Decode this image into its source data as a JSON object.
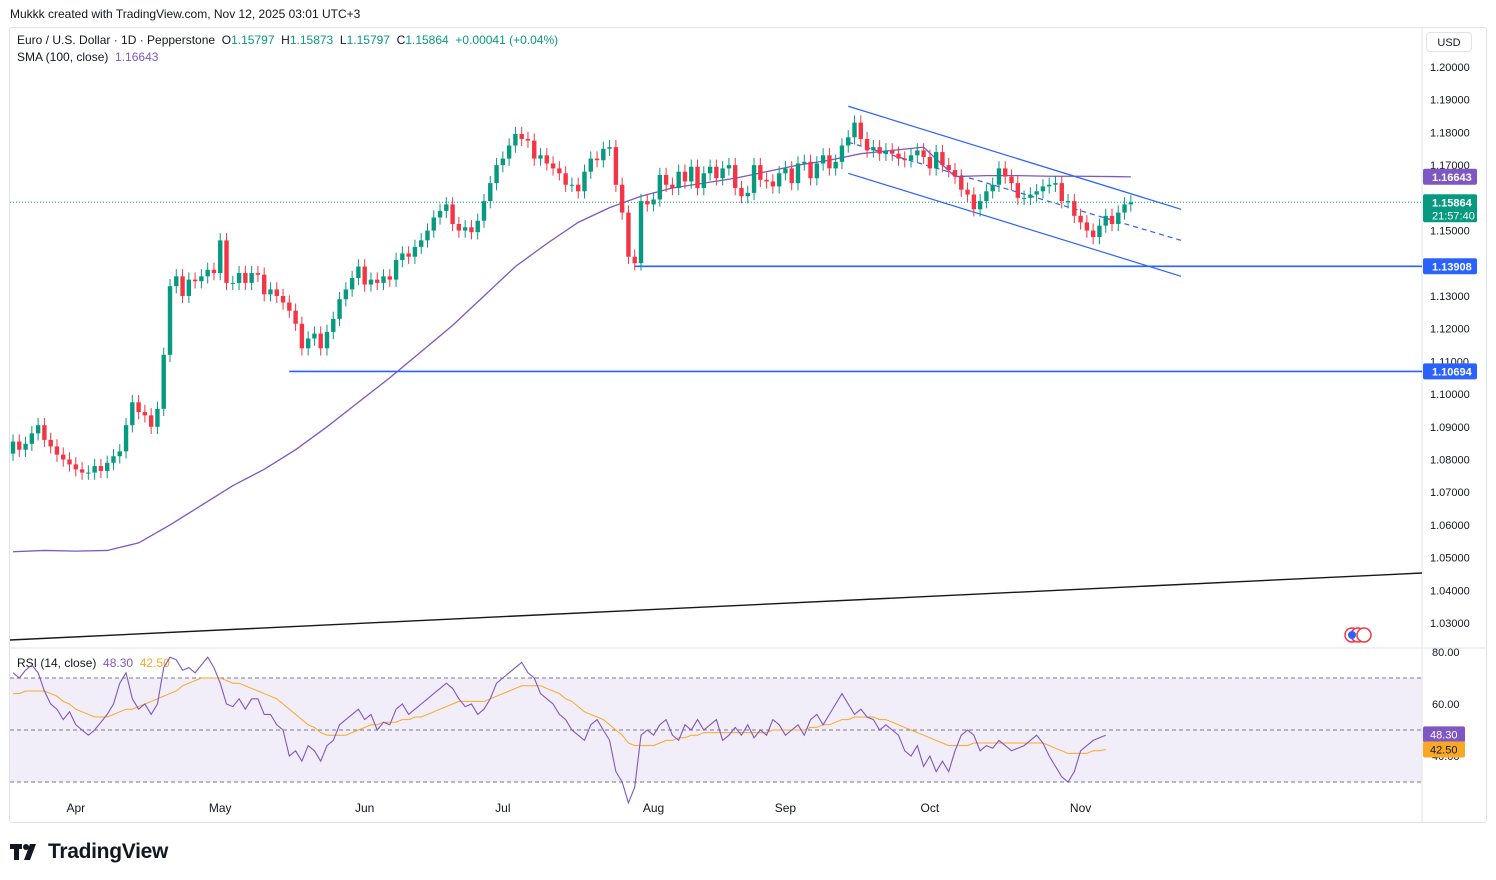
{
  "header": {
    "created_by": "Mukkk created with TradingView.com, Nov 12, 2025 03:01 UTC+3"
  },
  "symbol": {
    "name": "Euro / U.S. Dollar · 1D · Pepperstone",
    "open_label": "O",
    "open": "1.15797",
    "high_label": "H",
    "high": "1.15873",
    "low_label": "L",
    "low": "1.15797",
    "close_label": "C",
    "close": "1.15864",
    "change": "+0.00041 (+0.04%)"
  },
  "sma": {
    "label": "SMA (100, close)",
    "value": "1.16643"
  },
  "rsi": {
    "label": "RSI (14, close)",
    "value": "48.30",
    "ma_value": "42.50"
  },
  "currency_button": "USD",
  "brand": "TradingView",
  "colors": {
    "up": "#089981",
    "down": "#f23645",
    "sma": "#7e57c2",
    "rsi": "#7e57c2",
    "rsi_ma": "#f9a825",
    "hline": "#2962ff",
    "channel": "#2962ff"
  },
  "chart_data": [
    {
      "type": "candlestick",
      "title": "Euro / U.S. Dollar · 1D · Pepperstone",
      "ylim": [
        1.022,
        1.206
      ],
      "y_ticks": [
        "1.20000",
        "1.19000",
        "1.18000",
        "1.17000",
        "1.16000",
        "1.15000",
        "1.14000",
        "1.13000",
        "1.12000",
        "1.11000",
        "1.10000",
        "1.09000",
        "1.08000",
        "1.07000",
        "1.06000",
        "1.05000",
        "1.04000",
        "1.03000"
      ],
      "x_ticks": [
        "Apr",
        "May",
        "Jun",
        "Jul",
        "Aug",
        "Sep",
        "Oct",
        "Nov"
      ],
      "x_tick_days": [
        10,
        33,
        56,
        78,
        102,
        123,
        146,
        170
      ],
      "series": [
        {
          "name": "EURUSD",
          "start_index": 0,
          "open": [
            1.0818,
            1.0855,
            1.083,
            1.0848,
            1.088,
            1.0905,
            1.086,
            1.084,
            1.0815,
            1.08,
            1.0785,
            1.077,
            1.076,
            1.076,
            1.078,
            1.0765,
            1.079,
            1.081,
            1.0825,
            1.0905,
            1.0975,
            1.0945,
            1.0935,
            1.09,
            1.0955,
            1.112,
            1.133,
            1.136,
            1.13,
            1.135,
            1.1345,
            1.136,
            1.138,
            1.137,
            1.147,
            1.134,
            1.134,
            1.137,
            1.134,
            1.137,
            1.1365,
            1.1305,
            1.132,
            1.13,
            1.128,
            1.1255,
            1.1215,
            1.114,
            1.117,
            1.1185,
            1.114,
            1.119,
            1.123,
            1.129,
            1.132,
            1.1355,
            1.139,
            1.1335,
            1.135,
            1.134,
            1.136,
            1.135,
            1.141,
            1.143,
            1.142,
            1.145,
            1.147,
            1.15,
            1.154,
            1.156,
            1.158,
            1.152,
            1.15,
            1.151,
            1.1495,
            1.153,
            1.159,
            1.1645,
            1.17,
            1.172,
            1.176,
            1.1795,
            1.178,
            1.1775,
            1.172,
            1.173,
            1.1705,
            1.169,
            1.1675,
            1.164,
            1.164,
            1.162,
            1.168,
            1.172,
            1.1715,
            1.175,
            1.1755,
            1.164,
            1.1555,
            1.142,
            1.14,
            1.159,
            1.158,
            1.1595,
            1.167,
            1.164,
            1.163,
            1.168,
            1.165,
            1.1695,
            1.163,
            1.1675,
            1.1695,
            1.166,
            1.169,
            1.17,
            1.163,
            1.1605,
            1.1615,
            1.17,
            1.1655,
            1.165,
            1.1635,
            1.1675,
            1.169,
            1.1645,
            1.1705,
            1.171,
            1.166,
            1.1705,
            1.173,
            1.169,
            1.171,
            1.176,
            1.1785,
            1.183,
            1.178,
            1.1745,
            1.1755,
            1.1735,
            1.1745,
            1.1735,
            1.172,
            1.1715,
            1.173,
            1.1745,
            1.1725,
            1.169,
            1.174,
            1.17,
            1.1685,
            1.1665,
            1.1625,
            1.161,
            1.1565,
            1.159,
            1.162,
            1.164,
            1.169,
            1.1665,
            1.1645,
            1.16,
            1.16,
            1.161,
            1.162,
            1.1635,
            1.164,
            1.1645,
            1.159,
            1.159,
            1.1545,
            1.1525,
            1.15,
            1.148,
            1.1515,
            1.1545,
            1.152,
            1.1555,
            1.158
          ],
          "close": [
            1.0855,
            1.083,
            1.0848,
            1.088,
            1.0905,
            1.086,
            1.084,
            1.0815,
            1.08,
            1.0785,
            1.077,
            1.076,
            1.076,
            1.078,
            1.0765,
            1.079,
            1.081,
            1.0825,
            1.0905,
            1.0975,
            1.0945,
            1.0935,
            1.09,
            1.0955,
            1.112,
            1.133,
            1.136,
            1.13,
            1.135,
            1.1345,
            1.136,
            1.138,
            1.137,
            1.147,
            1.134,
            1.134,
            1.137,
            1.134,
            1.137,
            1.1365,
            1.1305,
            1.132,
            1.13,
            1.128,
            1.1255,
            1.1215,
            1.114,
            1.117,
            1.1185,
            1.114,
            1.119,
            1.123,
            1.129,
            1.132,
            1.1355,
            1.139,
            1.1335,
            1.135,
            1.134,
            1.136,
            1.135,
            1.141,
            1.143,
            1.142,
            1.145,
            1.147,
            1.15,
            1.154,
            1.156,
            1.158,
            1.152,
            1.15,
            1.151,
            1.1495,
            1.153,
            1.159,
            1.1645,
            1.17,
            1.172,
            1.176,
            1.1795,
            1.178,
            1.1775,
            1.172,
            1.173,
            1.1705,
            1.169,
            1.1675,
            1.164,
            1.164,
            1.162,
            1.168,
            1.172,
            1.1715,
            1.175,
            1.1755,
            1.164,
            1.1555,
            1.142,
            1.14,
            1.159,
            1.158,
            1.1595,
            1.167,
            1.164,
            1.163,
            1.168,
            1.165,
            1.1695,
            1.163,
            1.1675,
            1.1695,
            1.166,
            1.169,
            1.17,
            1.163,
            1.1605,
            1.1615,
            1.17,
            1.1655,
            1.165,
            1.1635,
            1.1675,
            1.169,
            1.1645,
            1.1705,
            1.171,
            1.166,
            1.1705,
            1.173,
            1.169,
            1.171,
            1.176,
            1.1785,
            1.183,
            1.178,
            1.1745,
            1.1755,
            1.1735,
            1.1745,
            1.1735,
            1.172,
            1.1715,
            1.173,
            1.1745,
            1.1725,
            1.169,
            1.174,
            1.17,
            1.1685,
            1.1665,
            1.1625,
            1.161,
            1.1565,
            1.159,
            1.162,
            1.164,
            1.169,
            1.1665,
            1.1645,
            1.16,
            1.16,
            1.161,
            1.162,
            1.1635,
            1.164,
            1.1645,
            1.159,
            1.159,
            1.1545,
            1.1525,
            1.15,
            1.148,
            1.1515,
            1.1545,
            1.152,
            1.1555,
            1.158,
            1.1586
          ]
        },
        {
          "name": "SMA (100, close)",
          "x": [
            0,
            5,
            10,
            15,
            20,
            25,
            30,
            35,
            40,
            45,
            50,
            55,
            60,
            65,
            70,
            75,
            80,
            85,
            90,
            95,
            100,
            105,
            110,
            115,
            120,
            125,
            130,
            135,
            140,
            145,
            150,
            155,
            160,
            165,
            170,
            175,
            178
          ],
          "values": [
            1.0518,
            1.0522,
            1.052,
            1.0522,
            1.0545,
            1.06,
            1.066,
            1.072,
            1.077,
            1.083,
            1.09,
            1.0975,
            1.105,
            1.113,
            1.121,
            1.13,
            1.139,
            1.146,
            1.1525,
            1.157,
            1.1605,
            1.163,
            1.1645,
            1.166,
            1.168,
            1.17,
            1.1715,
            1.1735,
            1.1745,
            1.1755,
            1.1665,
            1.1668,
            1.1668,
            1.1666,
            1.1666,
            1.1665,
            1.1664
          ]
        }
      ],
      "horizontal_levels": [
        {
          "price": 1.13908,
          "label": "1.13908",
          "from_day": 99
        },
        {
          "price": 1.10694,
          "label": "1.10694",
          "from_day": 44
        }
      ],
      "trend_line": {
        "from": [
          0,
          1.025
        ],
        "to": [
          188,
          1.045
        ]
      },
      "channel": {
        "upper": {
          "from": [
            133,
            1.188
          ],
          "to": [
            186,
            1.1565
          ]
        },
        "middle": {
          "from": [
            133,
            1.177
          ],
          "to": [
            186,
            1.147
          ]
        },
        "lower": {
          "from": [
            133,
            1.1675
          ],
          "to": [
            186,
            1.136
          ]
        }
      },
      "price_labels": [
        {
          "label": "1.16643",
          "price": 1.16643,
          "color": "#7e57c2"
        },
        {
          "label": "1.15864",
          "sub": "21:57:40",
          "price": 1.15864,
          "color": "#089981"
        },
        {
          "label": "1.13908",
          "price": 1.13908,
          "color": "#2962ff"
        },
        {
          "label": "1.10694",
          "price": 1.10694,
          "color": "#2962ff"
        }
      ]
    },
    {
      "type": "line",
      "title": "RSI (14, close)",
      "ylim": [
        25,
        82
      ],
      "y_ticks": [
        "80.00",
        "60.00",
        "40.00"
      ],
      "band": [
        30,
        70
      ],
      "series": [
        {
          "name": "RSI",
          "values": [
            72,
            70,
            73,
            75,
            72,
            65,
            60,
            58,
            54,
            57,
            52,
            50,
            48,
            50,
            53,
            56,
            60,
            68,
            72,
            62,
            58,
            60,
            56,
            60,
            74,
            78,
            77,
            73,
            74,
            72,
            75,
            78,
            74,
            68,
            60,
            59,
            62,
            58,
            62,
            62,
            56,
            56,
            52,
            50,
            40,
            42,
            38,
            44,
            42,
            38,
            44,
            46,
            52,
            54,
            56,
            58,
            54,
            56,
            50,
            53,
            52,
            58,
            60,
            56,
            58,
            60,
            62,
            64,
            66,
            68,
            66,
            62,
            59,
            60,
            56,
            58,
            62,
            68,
            70,
            72,
            74,
            76,
            72,
            70,
            64,
            62,
            60,
            56,
            54,
            50,
            48,
            46,
            52,
            54,
            50,
            46,
            34,
            30,
            22,
            28,
            48,
            50,
            48,
            52,
            54,
            48,
            46,
            52,
            50,
            54,
            50,
            52,
            54,
            46,
            48,
            51,
            48,
            52,
            47,
            50,
            48,
            54,
            52,
            48,
            50,
            52,
            48,
            54,
            56,
            52,
            56,
            60,
            64,
            60,
            56,
            58,
            55,
            54,
            50,
            52,
            50,
            48,
            42,
            40,
            44,
            36,
            40,
            34,
            38,
            34,
            42,
            48,
            50,
            48,
            42,
            44,
            43,
            46,
            44,
            42,
            43,
            44,
            46,
            48,
            45,
            40,
            36,
            32,
            30,
            34,
            42,
            44,
            46,
            47,
            48
          ]
        },
        {
          "name": "RSI-based MA",
          "values": [
            64,
            64,
            65,
            65,
            65,
            65,
            64,
            63,
            61,
            60,
            58,
            57,
            56,
            55,
            55,
            55,
            56,
            57,
            58,
            58,
            59,
            60,
            61,
            62,
            63,
            64,
            65,
            67,
            68,
            69,
            70,
            70,
            70,
            70,
            69,
            68,
            68,
            67,
            66,
            65,
            64,
            63,
            62,
            60,
            58,
            56,
            54,
            52,
            51,
            49,
            48,
            48,
            48,
            48,
            49,
            50,
            51,
            52,
            52,
            53,
            53,
            53,
            54,
            54,
            55,
            55,
            56,
            57,
            58,
            59,
            60,
            61,
            61,
            61,
            61,
            61,
            62,
            63,
            64,
            65,
            66,
            67,
            67,
            67,
            67,
            66,
            65,
            64,
            62,
            61,
            59,
            57,
            56,
            55,
            54,
            52,
            50,
            48,
            45,
            44,
            44,
            44,
            44,
            45,
            46,
            46,
            47,
            47,
            48,
            48,
            49,
            49,
            49,
            49,
            49,
            49,
            49,
            49,
            49,
            49,
            49,
            50,
            50,
            50,
            50,
            50,
            50,
            51,
            51,
            52,
            52,
            53,
            54,
            54,
            55,
            55,
            55,
            55,
            54,
            54,
            53,
            52,
            51,
            50,
            49,
            48,
            47,
            46,
            45,
            44,
            44,
            44,
            44,
            45,
            45,
            45,
            45,
            45,
            45,
            45,
            45,
            45,
            45,
            45,
            45,
            44,
            43,
            42,
            41,
            41,
            41,
            41,
            42,
            42,
            42.5
          ]
        }
      ],
      "x_ticks": [
        "Apr",
        "May",
        "Jun",
        "Jul",
        "Aug",
        "Sep",
        "Oct",
        "Nov"
      ]
    }
  ]
}
